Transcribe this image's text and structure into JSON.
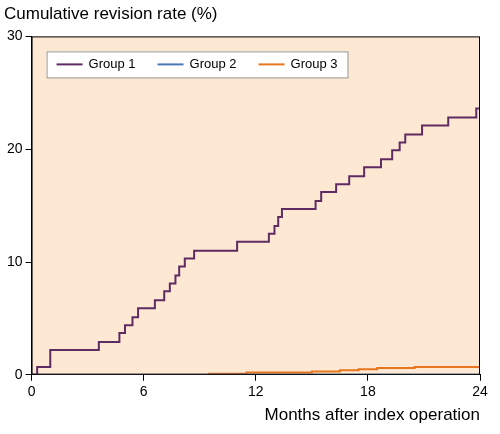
{
  "chart_data": {
    "type": "line",
    "title": "Cumulative revision rate (%)",
    "x_label": "Months after index operation",
    "xlim": [
      0,
      24
    ],
    "xticks": [
      0,
      6,
      12,
      18,
      24
    ],
    "ylim": [
      0,
      30
    ],
    "yticks": [
      0,
      10,
      20,
      30
    ],
    "grid": false,
    "legend": "top left",
    "line_style": "step",
    "series": [
      {
        "name": "Group 1",
        "color": "#5e2b63",
        "x": [
          0,
          0.3,
          1.0,
          3.6,
          4.7,
          5.0,
          5.4,
          5.7,
          6.6,
          7.1,
          7.4,
          7.7,
          7.9,
          8.2,
          8.7,
          11.0,
          12.7,
          13.0,
          13.2,
          13.4,
          15.2,
          15.5,
          16.3,
          17.0,
          17.8,
          18.7,
          19.3,
          19.7,
          20.0,
          20.9,
          22.3,
          23.8,
          24
        ],
        "values": [
          0,
          0.7,
          2.2,
          2.9,
          3.7,
          4.4,
          5.1,
          5.9,
          6.6,
          7.4,
          8.1,
          8.8,
          9.6,
          10.3,
          11.0,
          11.8,
          12.5,
          13.2,
          14.0,
          14.7,
          15.4,
          16.2,
          16.9,
          17.6,
          18.4,
          19.1,
          19.9,
          20.6,
          21.3,
          22.1,
          22.8,
          23.6,
          23.6
        ]
      },
      {
        "name": "Group 2",
        "color": "#4a78b5",
        "x": [
          0,
          24
        ],
        "values": [
          0,
          0
        ]
      },
      {
        "name": "Group 3",
        "color": "#e8761e",
        "x": [
          0,
          9.5,
          11.5,
          15.0,
          16.5,
          17.5,
          18.5,
          20.5,
          24
        ],
        "values": [
          0,
          0.1,
          0.2,
          0.3,
          0.4,
          0.5,
          0.6,
          0.7,
          0.7
        ]
      }
    ]
  }
}
